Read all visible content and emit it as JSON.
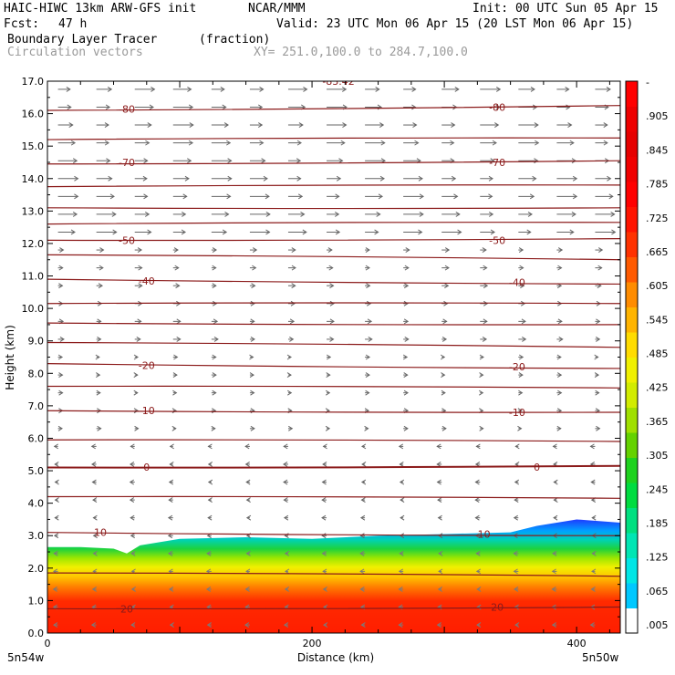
{
  "header": {
    "title": "HAIC-HIWC 13km ARW-GFS init",
    "org": "NCAR/MMM",
    "init": "Init: 00 UTC Sun 05 Apr 15",
    "fcst_label": "Fcst:",
    "fcst_value": "47 h",
    "valid": "Valid: 23 UTC Mon 06 Apr 15 (20 LST Mon 06 Apr 15)",
    "field": "Boundary Layer Tracer",
    "field_units": "(fraction)",
    "vectors": "Circulation vectors",
    "xsec": "XY= 251.0,100.0 to 284.7,100.0"
  },
  "chart_data": {
    "type": "heatmap",
    "xlabel": "Distance (km)",
    "ylabel": "Height (km)",
    "xlim": [
      0,
      433
    ],
    "ylim": [
      0.0,
      17.0
    ],
    "x_ticks": [
      0,
      200,
      400
    ],
    "y_ticks": [
      "0.0",
      "1.0",
      "2.0",
      "3.0",
      "4.0",
      "5.0",
      "6.0",
      "7.0",
      "8.0",
      "9.0",
      "10.0",
      "11.0",
      "12.0",
      "13.0",
      "14.0",
      "15.0",
      "16.0",
      "17.0"
    ],
    "x_end_labels": {
      "left": "5n54w",
      "right": "5n50w"
    },
    "colorbar": {
      "labels": [
        ".005",
        ".065",
        ".125",
        ".185",
        ".245",
        ".305",
        ".365",
        ".425",
        ".485",
        ".545",
        ".605",
        ".665",
        ".725",
        ".785",
        ".845",
        ".905",
        "-"
      ],
      "colors": [
        "#ffffff",
        "#00c8ff",
        "#00e6e6",
        "#00e6b4",
        "#00e080",
        "#00dc40",
        "#1ed21e",
        "#64d200",
        "#a0e000",
        "#d2ec00",
        "#f0f000",
        "#ffdc00",
        "#ffb400",
        "#ff8c00",
        "#ff5a00",
        "#ff3200",
        "#ff1400",
        "#ff0000",
        "#f00000",
        "#e60000",
        "#ee0000",
        "#ff0000"
      ]
    },
    "tracer_top_km": [
      [
        0,
        2.65
      ],
      [
        25,
        2.65
      ],
      [
        50,
        2.6
      ],
      [
        60,
        2.45
      ],
      [
        70,
        2.7
      ],
      [
        100,
        2.9
      ],
      [
        150,
        2.95
      ],
      [
        200,
        2.9
      ],
      [
        250,
        3.0
      ],
      [
        300,
        3.05
      ],
      [
        350,
        3.1
      ],
      [
        370,
        3.3
      ],
      [
        400,
        3.5
      ],
      [
        433,
        3.4
      ]
    ],
    "contours": {
      "label_values": [
        "-80",
        "-70",
        "-50",
        "-40",
        "-20",
        "-10",
        "0",
        "10",
        "20",
        "-83.42"
      ],
      "levels": [
        {
          "value": -85,
          "y": [
            17.05,
            17.05
          ]
        },
        {
          "value": -80,
          "y": [
            16.1,
            16.25
          ]
        },
        {
          "value": -75,
          "y": [
            15.2,
            15.25
          ]
        },
        {
          "value": -70,
          "y": [
            14.45,
            14.55
          ]
        },
        {
          "value": -65,
          "y": [
            13.75,
            13.8
          ]
        },
        {
          "value": -60,
          "y": [
            13.1,
            13.1
          ]
        },
        {
          "value": -55,
          "y": [
            12.6,
            12.65
          ]
        },
        {
          "value": -50,
          "y": [
            12.1,
            12.15
          ]
        },
        {
          "value": -45,
          "y": [
            11.65,
            11.5
          ]
        },
        {
          "value": -40,
          "y": [
            10.9,
            10.75
          ]
        },
        {
          "value": -35,
          "y": [
            10.15,
            10.15
          ]
        },
        {
          "value": -30,
          "y": [
            9.55,
            9.5
          ]
        },
        {
          "value": -25,
          "y": [
            8.95,
            8.8
          ]
        },
        {
          "value": -20,
          "y": [
            8.3,
            8.15
          ]
        },
        {
          "value": -15,
          "y": [
            7.6,
            7.55
          ]
        },
        {
          "value": -10,
          "y": [
            6.85,
            6.8
          ]
        },
        {
          "value": -5,
          "y": [
            5.95,
            5.9
          ]
        },
        {
          "value": 0,
          "y": [
            5.1,
            5.15
          ]
        },
        {
          "value": 5,
          "y": [
            4.2,
            4.15
          ]
        },
        {
          "value": 10,
          "y": [
            3.1,
            3.0
          ]
        },
        {
          "value": 15,
          "y": [
            1.85,
            1.75
          ]
        },
        {
          "value": 20,
          "y": [
            0.75,
            0.8
          ]
        }
      ],
      "labels": [
        {
          "text": "-83.42",
          "x": 220,
          "y": 17.0
        },
        {
          "text": "-80",
          "x": 60,
          "y": 16.15
        },
        {
          "text": "-80",
          "x": 340,
          "y": 16.2
        },
        {
          "text": "-70",
          "x": 60,
          "y": 14.5
        },
        {
          "text": "-70",
          "x": 340,
          "y": 14.5
        },
        {
          "text": "-50",
          "x": 60,
          "y": 12.1
        },
        {
          "text": "-50",
          "x": 340,
          "y": 12.1
        },
        {
          "text": "-40",
          "x": 75,
          "y": 10.85
        },
        {
          "text": "-40",
          "x": 355,
          "y": 10.8
        },
        {
          "text": "-20",
          "x": 75,
          "y": 8.25
        },
        {
          "text": "-20",
          "x": 355,
          "y": 8.2
        },
        {
          "text": "-10",
          "x": 75,
          "y": 6.85
        },
        {
          "text": "-10",
          "x": 355,
          "y": 6.8
        },
        {
          "text": "0",
          "x": 75,
          "y": 5.12
        },
        {
          "text": "0",
          "x": 370,
          "y": 5.12
        },
        {
          "text": "10",
          "x": 40,
          "y": 3.1
        },
        {
          "text": "10",
          "x": 330,
          "y": 3.05
        },
        {
          "text": "20",
          "x": 60,
          "y": 0.75
        },
        {
          "text": "20",
          "x": 340,
          "y": 0.8
        }
      ]
    }
  }
}
